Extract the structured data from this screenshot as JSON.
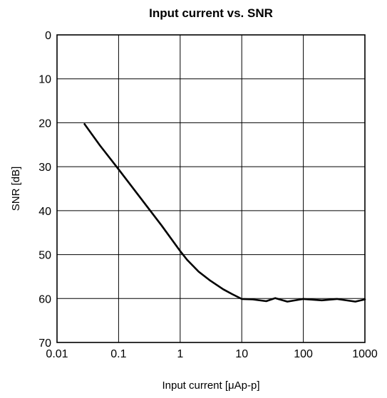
{
  "chart_data": {
    "type": "line",
    "title": "Input current vs. SNR",
    "xlabel": "Input current [μAp-p]",
    "ylabel": "SNR [dB]",
    "x_scale": "log",
    "xlim": [
      0.01,
      1000
    ],
    "ylim": [
      0,
      70
    ],
    "y_inverted": true,
    "grid": true,
    "x_ticks": [
      "0.01",
      "0.1",
      "1",
      "10",
      "100",
      "1000"
    ],
    "x_tick_values": [
      0.01,
      0.1,
      1,
      10,
      100,
      1000
    ],
    "y_ticks": [
      "0",
      "10",
      "20",
      "30",
      "40",
      "50",
      "60",
      "70"
    ],
    "y_tick_values": [
      0,
      10,
      20,
      30,
      40,
      50,
      60,
      70
    ],
    "series": [
      {
        "x": [
          0.028,
          0.05,
          0.1,
          0.2,
          0.5,
          1,
          1.3,
          2,
          3,
          5,
          7,
          10,
          15,
          25,
          35,
          55,
          100,
          200,
          350,
          700,
          1000
        ],
        "y": [
          20.3,
          25.2,
          30.6,
          36.1,
          43.4,
          49.2,
          51.2,
          53.9,
          55.8,
          57.9,
          59.0,
          60.1,
          60.2,
          60.6,
          59.9,
          60.7,
          60.1,
          60.4,
          60.1,
          60.7,
          60.2
        ]
      }
    ],
    "colors": {
      "line": "#000000",
      "grid": "#000000",
      "background": "#ffffff"
    }
  }
}
